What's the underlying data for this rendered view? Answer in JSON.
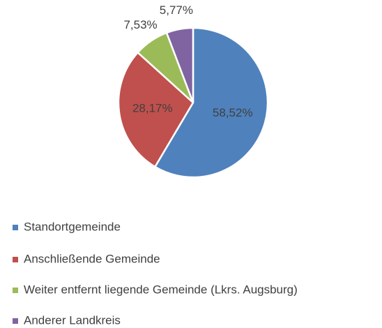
{
  "chart_data": {
    "type": "pie",
    "categories": [
      "Standortgemeinde",
      "Anschließende Gemeinde",
      "Weiter entfernt liegende Gemeinde (Lkrs. Augsburg)",
      "Anderer Landkreis"
    ],
    "values": [
      58.52,
      28.17,
      7.53,
      5.77
    ],
    "value_labels": [
      "58,52%",
      "28,17%",
      "7,53%",
      "5,77%"
    ],
    "colors": [
      "#4f81bd",
      "#c0504d",
      "#9bbb59",
      "#8064a2"
    ]
  }
}
